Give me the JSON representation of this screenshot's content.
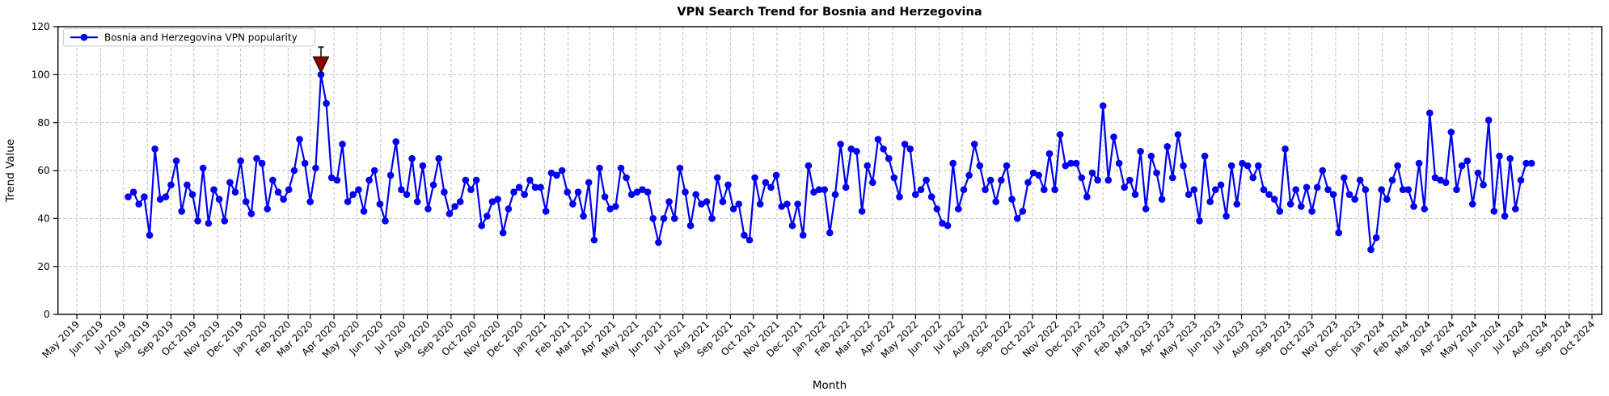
{
  "chart_data": {
    "type": "line",
    "title": "VPN Search Trend for Bosnia and Herzegovina",
    "xlabel": "Month",
    "ylabel": "Trend Value",
    "ylim": [
      0,
      120
    ],
    "yticks": [
      0,
      20,
      40,
      60,
      80,
      100,
      120
    ],
    "grid": true,
    "legend_position": "upper left",
    "legend": {
      "label": "Bosnia and Herzegovina VPN popularity"
    },
    "colors": {
      "line": "#0000F2",
      "grid": "#bbbbbb",
      "annotation_fill": "#8B0000",
      "annotation_edge": "#1a0000",
      "stem": "#1a1a1a",
      "spine": "#000000",
      "legend_border": "#cccccc"
    },
    "x_tick_labels": [
      "May 2019",
      "Jun 2019",
      "Jul 2019",
      "Aug 2019",
      "Sep 2019",
      "Oct 2019",
      "Nov 2019",
      "Dec 2019",
      "Jan 2020",
      "Feb 2020",
      "Mar 2020",
      "Apr 2020",
      "May 2020",
      "Jun 2020",
      "Jul 2020",
      "Aug 2020",
      "Sep 2020",
      "Oct 2020",
      "Nov 2020",
      "Dec 2020",
      "Jan 2021",
      "Feb 2021",
      "Mar 2021",
      "Apr 2021",
      "May 2021",
      "Jun 2021",
      "Jul 2021",
      "Aug 2021",
      "Sep 2021",
      "Oct 2021",
      "Nov 2021",
      "Dec 2021",
      "Jan 2022",
      "Feb 2022",
      "Mar 2022",
      "Apr 2022",
      "May 2022",
      "Jun 2022",
      "Jul 2022",
      "Aug 2022",
      "Sep 2022",
      "Oct 2022",
      "Nov 2022",
      "Dec 2022",
      "Jan 2023",
      "Feb 2023",
      "Mar 2023",
      "Apr 2023",
      "May 2023",
      "Jun 2023",
      "Jul 2023",
      "Aug 2023",
      "Sep 2023",
      "Oct 2023",
      "Nov 2023",
      "Dec 2023",
      "Jan 2024",
      "Feb 2024",
      "Mar 2024",
      "Apr 2024",
      "May 2024",
      "Jun 2024",
      "Jul 2024",
      "Aug 2024",
      "Sep 2024",
      "Oct 2024"
    ],
    "series": [
      {
        "name": "Bosnia and Herzegovina VPN popularity",
        "marker": "o",
        "start_date": "2019-07-07",
        "interval_days": 7,
        "values": [
          49,
          51,
          46,
          49,
          33,
          69,
          48,
          49,
          54,
          64,
          43,
          54,
          50,
          39,
          61,
          38,
          52,
          48,
          39,
          55,
          51,
          64,
          47,
          42,
          65,
          63,
          44,
          56,
          51,
          48,
          52,
          60,
          73,
          63,
          47,
          61,
          100,
          88,
          57,
          56,
          71,
          47,
          50,
          52,
          43,
          56,
          60,
          46,
          39,
          58,
          72,
          52,
          50,
          65,
          47,
          62,
          44,
          54,
          65,
          51,
          42,
          45,
          47,
          56,
          52,
          56,
          37,
          41,
          47,
          48,
          34,
          44,
          51,
          53,
          50,
          56,
          53,
          53,
          43,
          59,
          58,
          60,
          51,
          46,
          51,
          41,
          55,
          31,
          61,
          49,
          44,
          45,
          61,
          57,
          50,
          51,
          52,
          51,
          40,
          30,
          40,
          47,
          40,
          61,
          51,
          37,
          50,
          46,
          47,
          40,
          57,
          47,
          54,
          44,
          46,
          33,
          31,
          57,
          46,
          55,
          53,
          58,
          45,
          46,
          37,
          46,
          33,
          62,
          51,
          52,
          52,
          34,
          50,
          71,
          53,
          69,
          68,
          43,
          62,
          55,
          73,
          69,
          65,
          57,
          49,
          71,
          69,
          50,
          52,
          56,
          49,
          44,
          38,
          37,
          63,
          44,
          52,
          58,
          71,
          62,
          52,
          56,
          47,
          56,
          62,
          48,
          40,
          43,
          55,
          59,
          58,
          52,
          67,
          52,
          75,
          62,
          63,
          63,
          57,
          49,
          59,
          56,
          87,
          56,
          74,
          63,
          53,
          56,
          50,
          68,
          44,
          66,
          59,
          48,
          70,
          57,
          75,
          62,
          50,
          52,
          39,
          66,
          47,
          52,
          54,
          41,
          62,
          46,
          63,
          62,
          57,
          62,
          52,
          50,
          48,
          43,
          69,
          46,
          52,
          45,
          53,
          43,
          53,
          60,
          52,
          50,
          34,
          57,
          50,
          48,
          56,
          52,
          27,
          32,
          52,
          48,
          56,
          62,
          52,
          52,
          45,
          63,
          44,
          84,
          57,
          56,
          55,
          76,
          52,
          62,
          64,
          46,
          59,
          54,
          81,
          43,
          66,
          41,
          65,
          44,
          56,
          63,
          63
        ]
      }
    ],
    "annotation": {
      "shape": "triangle-down-pin",
      "x_date": "2020-03-15",
      "y_value": 100,
      "meaning": "peak marker"
    }
  }
}
